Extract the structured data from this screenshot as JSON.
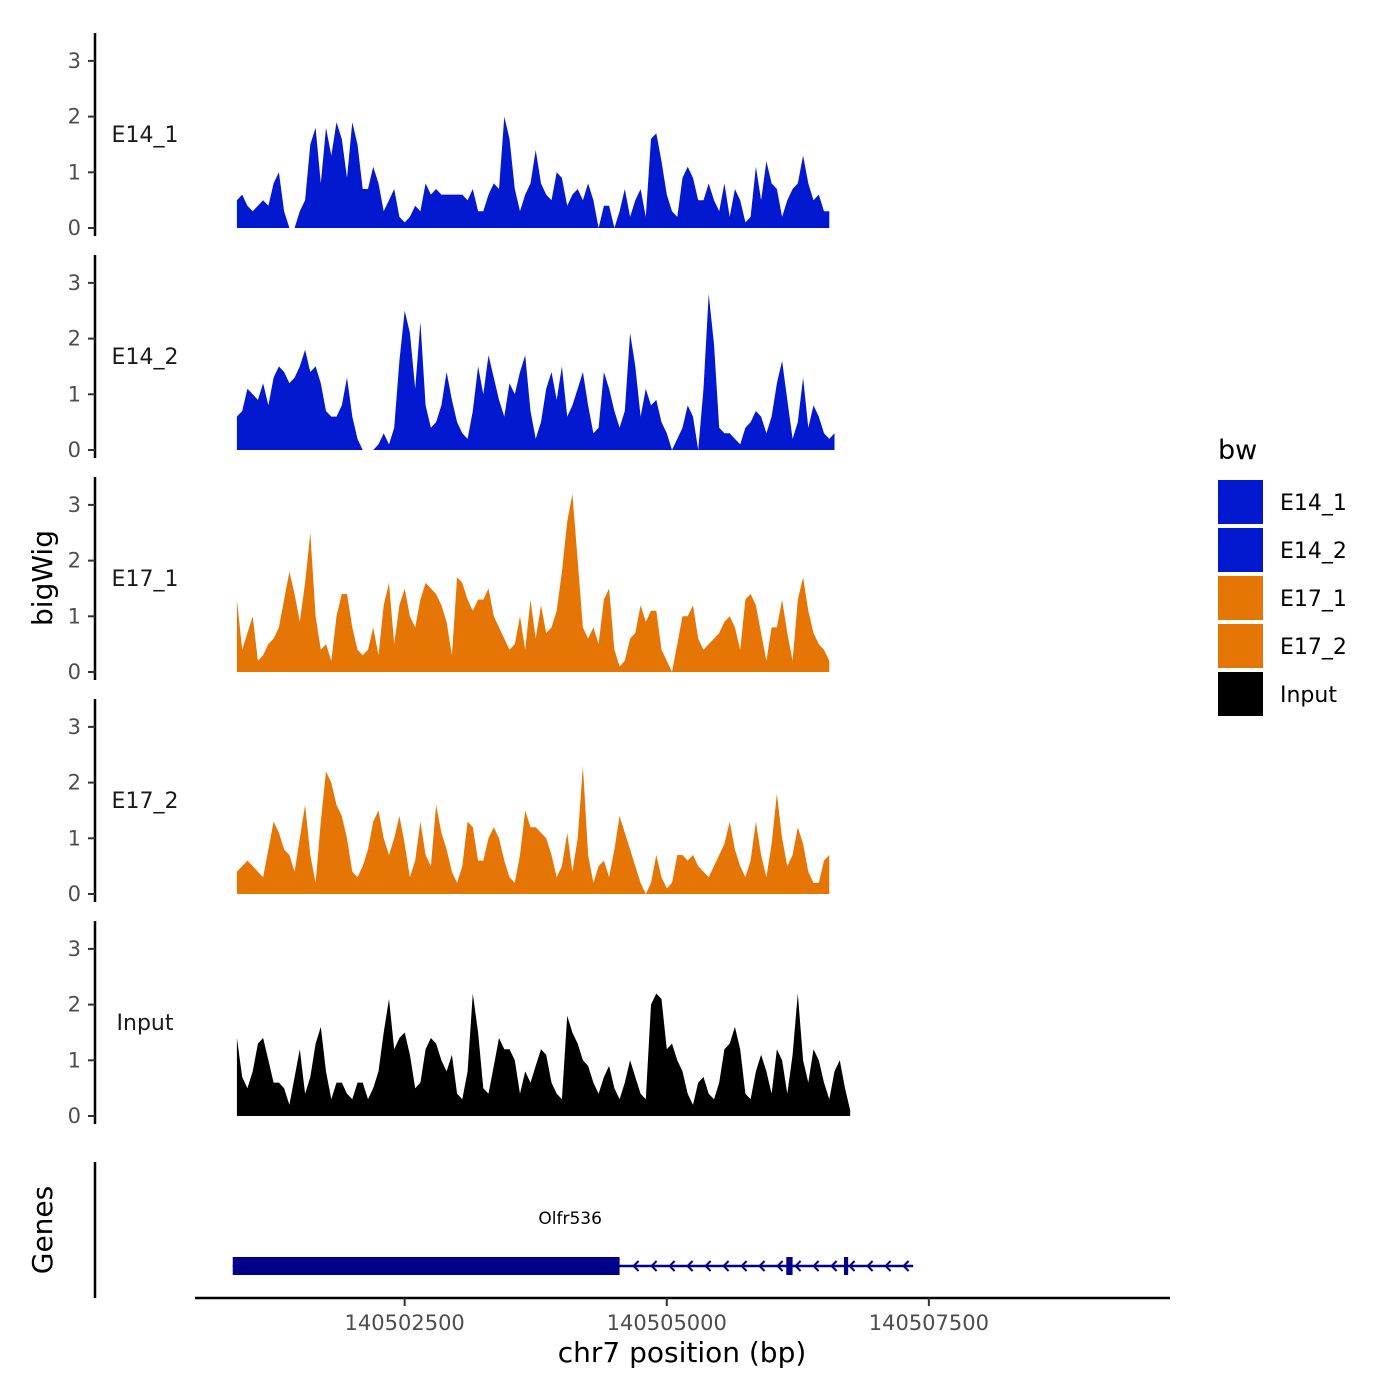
{
  "chart_data": {
    "type": "area",
    "ylabel": "bigWig",
    "xlabel": "chr7 position (bp)",
    "xlim": [
      140500500,
      140509800
    ],
    "ylim": [
      0,
      3.5
    ],
    "y_ticks": [
      0,
      1,
      2,
      3
    ],
    "x_ticks": [
      140502500,
      140505000,
      140507500
    ],
    "genes_panel_label": "Genes",
    "legend": {
      "title": "bw",
      "entries": [
        {
          "name": "E14_1",
          "color": "#0319CF"
        },
        {
          "name": "E14_2",
          "color": "#0319CF"
        },
        {
          "name": "E17_1",
          "color": "#E57504"
        },
        {
          "name": "E17_2",
          "color": "#E57504"
        },
        {
          "name": "Input",
          "color": "#000000"
        }
      ]
    },
    "x_start": 140500900,
    "x_step": 50,
    "tracks": [
      {
        "name": "E14_1",
        "color": "#0319CF",
        "values": [
          0.5,
          0.6,
          0.4,
          0.3,
          0.4,
          0.5,
          0.4,
          0.8,
          1.0,
          0.3,
          0,
          0,
          0.3,
          0.5,
          1.5,
          1.8,
          0.8,
          1.8,
          1.3,
          1.9,
          1.6,
          0.9,
          1.9,
          1.5,
          0.7,
          0.7,
          1.1,
          0.8,
          0.3,
          0.5,
          0.7,
          0.2,
          0.1,
          0.2,
          0.4,
          0.3,
          0.8,
          0.6,
          0.7,
          0.6,
          0.6,
          0.6,
          0.6,
          0.6,
          0.5,
          0.7,
          0.3,
          0.3,
          0.6,
          0.8,
          0.7,
          2.0,
          1.6,
          0.7,
          0.3,
          0.6,
          0.8,
          1.4,
          0.8,
          0.6,
          0.5,
          1.0,
          0.9,
          0.4,
          0.6,
          0.7,
          0.5,
          0.8,
          0.5,
          0,
          0.4,
          0.4,
          0,
          0.3,
          0.7,
          0.2,
          0.5,
          0.7,
          0.2,
          1.6,
          1.7,
          1.2,
          0.6,
          0.3,
          0.2,
          0.9,
          1.1,
          0.9,
          0.5,
          0.5,
          0.8,
          0.5,
          0.3,
          0.8,
          0.2,
          0.7,
          0.5,
          0.1,
          0.2,
          1.1,
          0.5,
          1.2,
          0.8,
          0.7,
          0.2,
          0.5,
          0.7,
          0.8,
          1.3,
          0.8,
          0.5,
          0.6,
          0.3,
          0.3
        ]
      },
      {
        "name": "E14_2",
        "color": "#0319CF",
        "values": [
          0.6,
          0.7,
          1.1,
          1.0,
          0.9,
          1.2,
          0.8,
          1.3,
          1.5,
          1.4,
          1.2,
          1.3,
          1.5,
          1.8,
          1.4,
          1.5,
          1.2,
          0.7,
          0.6,
          0.6,
          0.8,
          1.3,
          0.6,
          0.2,
          0,
          0,
          0,
          0.1,
          0.3,
          0.1,
          0.4,
          1.6,
          2.5,
          2.1,
          1.1,
          2.3,
          0.8,
          0.4,
          0.5,
          0.8,
          1.4,
          0.9,
          0.5,
          0.3,
          0.2,
          0.7,
          1.5,
          1.0,
          1.7,
          1.3,
          0.9,
          0.6,
          1.2,
          1.0,
          1.4,
          1.7,
          0.7,
          0.2,
          0.5,
          1.1,
          1.4,
          0.9,
          1.5,
          0.6,
          0.8,
          1.1,
          1.4,
          0.8,
          0.3,
          0.4,
          1.4,
          1.1,
          0.7,
          0.4,
          0.7,
          2.1,
          1.5,
          0.6,
          1.1,
          0.8,
          0.9,
          0.5,
          0.3,
          0,
          0.2,
          0.4,
          0.8,
          0.6,
          0,
          1.1,
          2.8,
          1.9,
          0.4,
          0.3,
          0.3,
          0.2,
          0.1,
          0.4,
          0.5,
          0.7,
          0.6,
          0.3,
          0.6,
          1.2,
          1.6,
          0.9,
          0.2,
          0.5,
          1.3,
          0.4,
          0.8,
          0.6,
          0.3,
          0.2,
          0.3
        ]
      },
      {
        "name": "E17_1",
        "color": "#E57504",
        "values": [
          1.3,
          0.4,
          0.7,
          1.0,
          0.2,
          0.3,
          0.5,
          0.6,
          0.8,
          1.3,
          1.8,
          1.4,
          0.9,
          1.6,
          2.5,
          1.0,
          0.4,
          0.5,
          0.2,
          1.0,
          1.4,
          1.4,
          0.8,
          0.4,
          0.3,
          0.4,
          0.8,
          0.3,
          1.2,
          1.6,
          0.5,
          1.2,
          1.5,
          1.0,
          0.8,
          1.3,
          1.6,
          1.5,
          1.4,
          1.2,
          0.9,
          0.3,
          1.7,
          1.6,
          1.3,
          1.1,
          1.3,
          1.3,
          1.5,
          1.0,
          0.8,
          0.6,
          0.4,
          0.5,
          1.0,
          0.4,
          1.3,
          0.6,
          1.2,
          0.7,
          0.8,
          1.1,
          1.8,
          2.7,
          3.2,
          2.0,
          0.8,
          0.6,
          0.8,
          0.5,
          1.3,
          1.5,
          0.4,
          0.1,
          0.2,
          0.6,
          0.7,
          1.2,
          0.9,
          1.1,
          1.1,
          0.4,
          0.2,
          0,
          0.5,
          1.0,
          1.0,
          1.2,
          0.6,
          0.4,
          0.5,
          0.6,
          0.7,
          0.9,
          1.0,
          0.8,
          0.4,
          1.3,
          1.4,
          1.2,
          0.7,
          0.2,
          0.8,
          0.8,
          1.3,
          0.7,
          0.2,
          1.3,
          1.7,
          1.1,
          0.7,
          0.5,
          0.4,
          0.2
        ]
      },
      {
        "name": "E17_2",
        "color": "#E57504",
        "values": [
          0.4,
          0.5,
          0.6,
          0.5,
          0.4,
          0.3,
          0.8,
          1.3,
          1.1,
          0.8,
          0.7,
          0.4,
          1.0,
          1.6,
          0.7,
          0.2,
          1.3,
          2.2,
          2.0,
          1.6,
          1.4,
          1.0,
          0.4,
          0.3,
          0.5,
          0.8,
          1.3,
          1.5,
          1.0,
          0.7,
          1.0,
          1.4,
          0.9,
          0.3,
          0.6,
          1.3,
          0.7,
          0.5,
          1.6,
          1.1,
          0.8,
          0.4,
          0.2,
          0.5,
          1.3,
          1.2,
          0.6,
          0.6,
          1.0,
          1.2,
          1.0,
          0.6,
          0.3,
          0.2,
          0.7,
          1.5,
          1.2,
          1.2,
          1.1,
          1.0,
          0.7,
          0.3,
          0.5,
          1.1,
          0.4,
          1.0,
          2.3,
          0.7,
          0.2,
          0.5,
          0.6,
          0.3,
          0.8,
          1.4,
          1.1,
          0.8,
          0.5,
          0.2,
          0,
          0.2,
          0.7,
          0.3,
          0.1,
          0.2,
          0.7,
          0.7,
          0.6,
          0.7,
          0.5,
          0.4,
          0.3,
          0.5,
          0.7,
          0.9,
          1.3,
          0.8,
          0.5,
          0.3,
          0.6,
          1.3,
          0.7,
          0.3,
          0.9,
          1.8,
          1.0,
          0.5,
          0.7,
          1.2,
          0.9,
          0.4,
          0.2,
          0.2,
          0.6,
          0.7
        ]
      },
      {
        "name": "Input",
        "color": "#000000",
        "values": [
          1.4,
          0.7,
          0.5,
          0.8,
          1.3,
          1.4,
          1.0,
          0.6,
          0.6,
          0.5,
          0.2,
          0.7,
          1.2,
          0.4,
          0.7,
          1.3,
          1.6,
          0.8,
          0.3,
          0.6,
          0.6,
          0.4,
          0.3,
          0.6,
          0.6,
          0.3,
          0.5,
          0.8,
          1.5,
          2.1,
          1.2,
          1.4,
          1.5,
          1.1,
          0.5,
          0.6,
          1.2,
          1.4,
          1.3,
          1.0,
          0.8,
          1.1,
          0.4,
          0.3,
          0.8,
          2.2,
          1.5,
          0.5,
          0.4,
          0.9,
          1.4,
          1.2,
          1.2,
          1.0,
          0.4,
          0.8,
          0.6,
          0.9,
          1.2,
          1.1,
          0.6,
          0.4,
          0.3,
          1.8,
          1.5,
          1.3,
          1.0,
          0.9,
          0.6,
          0.4,
          0.7,
          0.9,
          0.5,
          0.3,
          0.6,
          1.0,
          0.7,
          0.4,
          0.3,
          2.0,
          2.2,
          2.1,
          1.2,
          1.3,
          1.0,
          0.8,
          0.4,
          0.2,
          0.6,
          0.7,
          0.4,
          0.3,
          0.6,
          1.2,
          1.3,
          1.6,
          1.2,
          0.4,
          0.3,
          0.8,
          1.1,
          0.8,
          0.4,
          1.2,
          1.0,
          0.4,
          1.1,
          2.2,
          1.0,
          0.6,
          1.2,
          1.0,
          0.6,
          0.3,
          0.8,
          1.0,
          0.5,
          0.1
        ]
      }
    ],
    "genes": [
      {
        "name": "Olfr536",
        "strand": "-",
        "start": 140500860,
        "end": 140507350,
        "thick_start": 140500860,
        "thick_end": 140504550,
        "exons": [
          [
            140500860,
            140504550
          ],
          [
            140506140,
            140506200
          ],
          [
            140506690,
            140506730
          ]
        ]
      }
    ]
  }
}
